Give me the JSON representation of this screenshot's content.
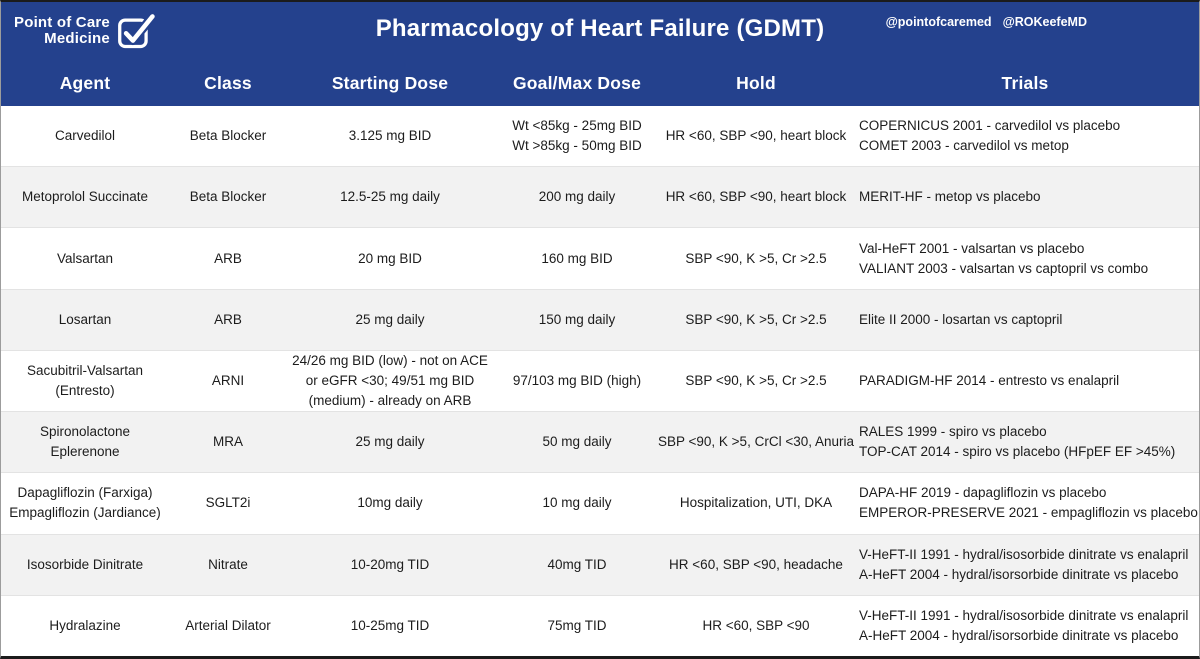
{
  "brand": {
    "name_line1": "Point of Care",
    "name_line2": "Medicine",
    "logo_icon": "checkbox-check-icon"
  },
  "header": {
    "title": "Pharmacology of Heart Failure (GDMT)",
    "handles": [
      "@pointofcaremed",
      "@ROKeefeMD"
    ]
  },
  "columns": [
    "Agent",
    "Class",
    "Starting Dose",
    "Goal/Max Dose",
    "Hold",
    "Trials"
  ],
  "colors": {
    "navy": "#24418d",
    "alt_row": "#f2f2f2",
    "text": "#1c1c1c",
    "divider": "#e3e3e3"
  },
  "table": {
    "rows": [
      {
        "agent": [
          "Carvedilol"
        ],
        "class": "Beta Blocker",
        "starting_dose": [
          "3.125 mg BID"
        ],
        "goal_max_dose": [
          "Wt <85kg - 25mg BID",
          "Wt >85kg - 50mg BID"
        ],
        "hold": "HR <60, SBP <90, heart block",
        "trials": [
          "COPERNICUS 2001 - carvedilol vs placebo",
          "COMET 2003 - carvedilol vs metop"
        ]
      },
      {
        "agent": [
          "Metoprolol Succinate"
        ],
        "class": "Beta Blocker",
        "starting_dose": [
          "12.5-25 mg daily"
        ],
        "goal_max_dose": [
          "200 mg daily"
        ],
        "hold": "HR <60, SBP <90, heart block",
        "trials": [
          "MERIT-HF - metop vs placebo"
        ]
      },
      {
        "agent": [
          "Valsartan"
        ],
        "class": "ARB",
        "starting_dose": [
          "20 mg BID"
        ],
        "goal_max_dose": [
          "160 mg BID"
        ],
        "hold": "SBP <90, K >5, Cr >2.5",
        "trials": [
          "Val-HeFT 2001 - valsartan vs placebo",
          "VALIANT 2003 - valsartan vs captopril vs combo"
        ]
      },
      {
        "agent": [
          "Losartan"
        ],
        "class": "ARB",
        "starting_dose": [
          "25 mg daily"
        ],
        "goal_max_dose": [
          "150 mg daily"
        ],
        "hold": "SBP <90, K >5, Cr >2.5",
        "trials": [
          "Elite II 2000 - losartan vs captopril"
        ]
      },
      {
        "agent": [
          "Sacubitril-Valsartan",
          "(Entresto)"
        ],
        "class": "ARNI",
        "starting_dose": [
          "24/26 mg BID (low) - not on ACE",
          "or eGFR <30; 49/51 mg BID",
          "(medium) - already on ARB"
        ],
        "goal_max_dose": [
          "97/103 mg BID (high)"
        ],
        "hold": "SBP <90, K >5, Cr >2.5",
        "trials": [
          "PARADIGM-HF 2014 - entresto vs enalapril"
        ]
      },
      {
        "agent": [
          "Spironolactone",
          "Eplerenone"
        ],
        "class": "MRA",
        "starting_dose": [
          "25 mg daily"
        ],
        "goal_max_dose": [
          "50 mg daily"
        ],
        "hold": "SBP <90, K >5, CrCl <30, Anuria",
        "trials": [
          "RALES 1999 - spiro vs placebo",
          "TOP-CAT 2014 - spiro vs placebo (HFpEF EF >45%)"
        ]
      },
      {
        "agent": [
          "Dapagliflozin (Farxiga)",
          "Empagliflozin (Jardiance)"
        ],
        "class": "SGLT2i",
        "starting_dose": [
          "10mg daily"
        ],
        "goal_max_dose": [
          "10 mg daily"
        ],
        "hold": "Hospitalization, UTI, DKA",
        "trials": [
          "DAPA-HF 2019 - dapagliflozin vs placebo",
          "EMPEROR-PRESERVE 2021 - empagliflozin vs placebo"
        ]
      },
      {
        "agent": [
          "Isosorbide Dinitrate"
        ],
        "class": "Nitrate",
        "starting_dose": [
          "10-20mg TID"
        ],
        "goal_max_dose": [
          "40mg TID"
        ],
        "hold": "HR <60, SBP <90, headache",
        "trials": [
          "V-HeFT-II 1991 - hydral/isosorbide dinitrate vs enalapril",
          "A-HeFT 2004 - hydral/isorsorbide dinitrate vs placebo"
        ]
      },
      {
        "agent": [
          "Hydralazine"
        ],
        "class": "Arterial Dilator",
        "starting_dose": [
          "10-25mg TID"
        ],
        "goal_max_dose": [
          "75mg TID"
        ],
        "hold": "HR <60, SBP <90",
        "trials": [
          "V-HeFT-II 1991 - hydral/isosorbide dinitrate vs enalapril",
          "A-HeFT 2004 - hydral/isorsorbide dinitrate vs placebo"
        ]
      }
    ]
  }
}
